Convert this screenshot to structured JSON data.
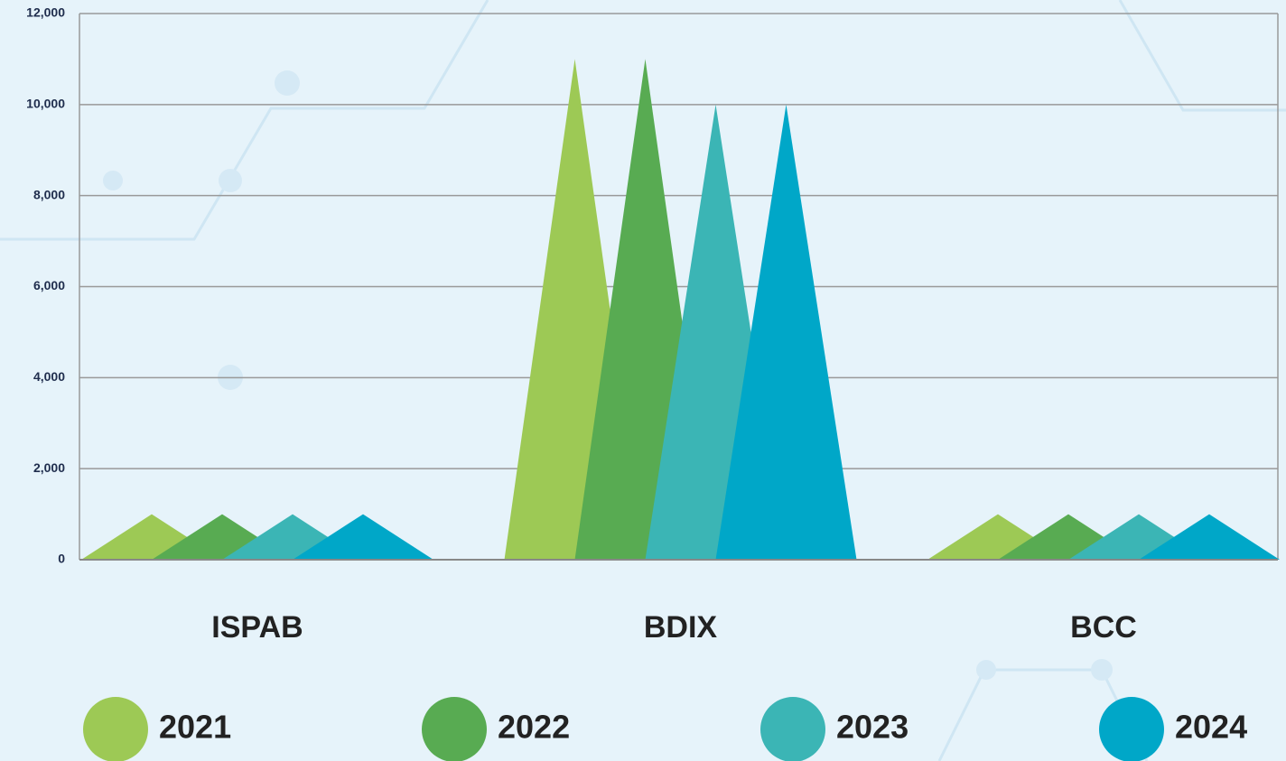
{
  "chart_data": {
    "type": "triangle",
    "categories": [
      "ISPAB",
      "BDIX",
      "BCC"
    ],
    "series": [
      {
        "name": "2021",
        "color": "#9dc955",
        "values": [
          1000,
          11000,
          1000
        ]
      },
      {
        "name": "2022",
        "color": "#58ab52",
        "values": [
          1000,
          11000,
          1000
        ]
      },
      {
        "name": "2023",
        "color": "#3bb5b5",
        "values": [
          1000,
          10000,
          1000
        ]
      },
      {
        "name": "2024",
        "color": "#00a7c8",
        "values": [
          1000,
          10000,
          1000
        ]
      }
    ],
    "ylim": [
      0,
      12000
    ],
    "yticks": [
      0,
      {
        "value": 2000,
        "label": "2,000"
      },
      {
        "value": 4000,
        "label": "4,000"
      },
      {
        "value": 6000,
        "label": "6,000"
      },
      {
        "value": 8000,
        "label": "8,000"
      },
      {
        "value": 10000,
        "label": "10,000"
      },
      {
        "value": 12000,
        "label": "12,000"
      }
    ],
    "grid": true
  }
}
